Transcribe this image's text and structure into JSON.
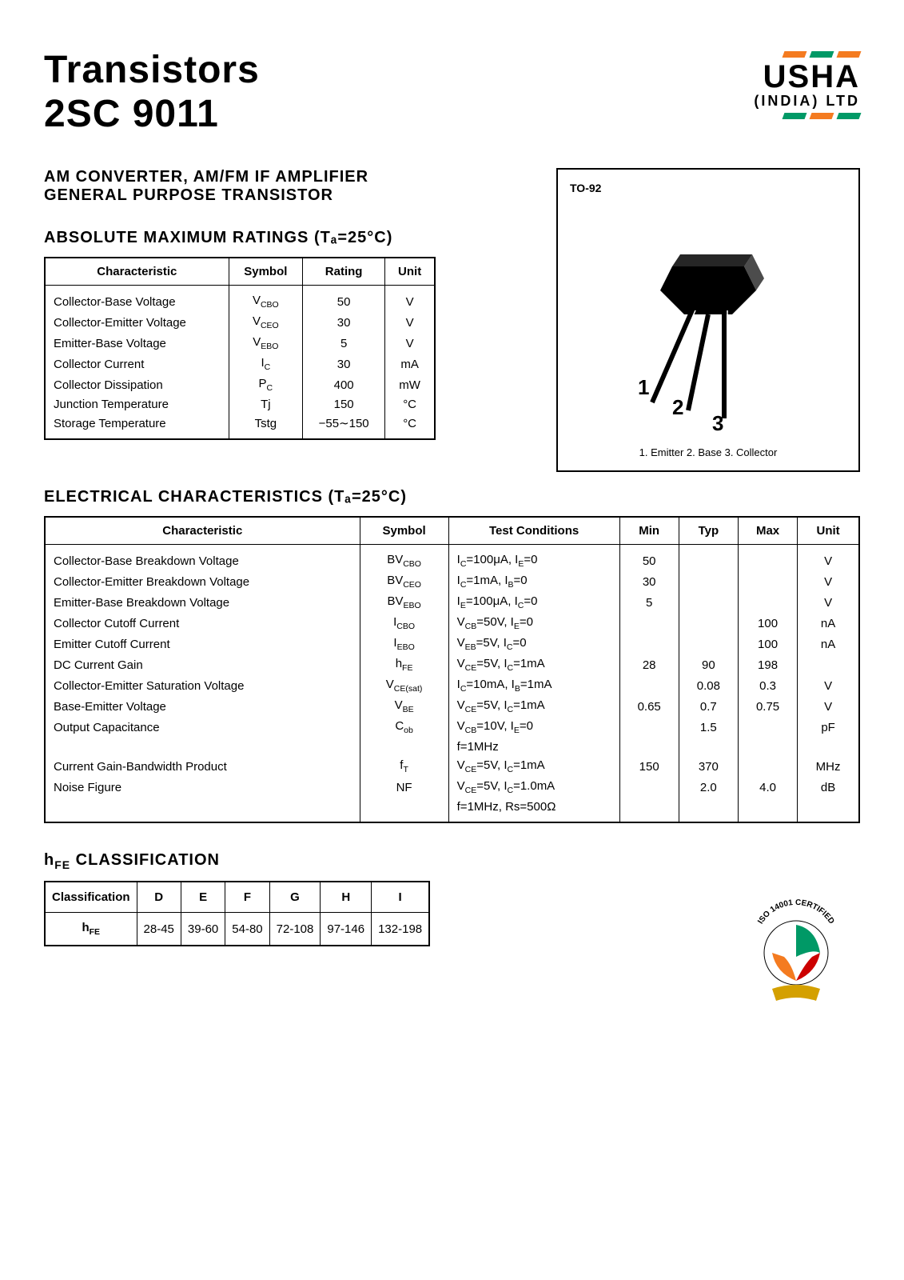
{
  "header": {
    "title_line1": "Transistors",
    "title_line2": "2SC 9011",
    "logo_text": "USHA",
    "logo_sub": "(INDIA) LTD",
    "flag_colors": [
      "#f47b20",
      "#009966"
    ]
  },
  "subtitle": {
    "line1": "AM CONVERTER, AM/FM IF AMPLIFIER",
    "line2": "GENERAL PURPOSE TRANSISTOR"
  },
  "package": {
    "label": "TO-92",
    "pin1": "1",
    "pin2": "2",
    "pin3": "3",
    "legend": "1. Emitter 2. Base 3. Collector"
  },
  "amr": {
    "title": "ABSOLUTE MAXIMUM RATINGS (Tₐ=25°C)",
    "headers": [
      "Characteristic",
      "Symbol",
      "Rating",
      "Unit"
    ],
    "rows": [
      {
        "c": "Collector-Base Voltage",
        "s": "V",
        "sub": "CBO",
        "r": "50",
        "u": "V"
      },
      {
        "c": "Collector-Emitter Voltage",
        "s": "V",
        "sub": "CEO",
        "r": "30",
        "u": "V"
      },
      {
        "c": "Emitter-Base Voltage",
        "s": "V",
        "sub": "EBO",
        "r": "5",
        "u": "V"
      },
      {
        "c": "Collector Current",
        "s": "I",
        "sub": "C",
        "r": "30",
        "u": "mA"
      },
      {
        "c": "Collector Dissipation",
        "s": "P",
        "sub": "C",
        "r": "400",
        "u": "mW"
      },
      {
        "c": "Junction Temperature",
        "s": "Tj",
        "sub": "",
        "r": "150",
        "u": "°C"
      },
      {
        "c": "Storage Temperature",
        "s": "Tstg",
        "sub": "",
        "r": "−55∼150",
        "u": "°C"
      }
    ]
  },
  "elec": {
    "title": "ELECTRICAL CHARACTERISTICS (Tₐ=25°C)",
    "headers": [
      "Characteristic",
      "Symbol",
      "Test Conditions",
      "Min",
      "Typ",
      "Max",
      "Unit"
    ],
    "rows": [
      {
        "c": "Collector-Base Breakdown Voltage",
        "s": "BV",
        "sub": "CBO",
        "tc": "I_C=100μA, I_E=0",
        "min": "50",
        "typ": "",
        "max": "",
        "u": "V"
      },
      {
        "c": "Collector-Emitter Breakdown Voltage",
        "s": "BV",
        "sub": "CEO",
        "tc": "I_C=1mA, I_B=0",
        "min": "30",
        "typ": "",
        "max": "",
        "u": "V"
      },
      {
        "c": "Emitter-Base Breakdown Voltage",
        "s": "BV",
        "sub": "EBO",
        "tc": "I_E=100μA, I_C=0",
        "min": "5",
        "typ": "",
        "max": "",
        "u": "V"
      },
      {
        "c": "Collector Cutoff Current",
        "s": "I",
        "sub": "CBO",
        "tc": "V_CB=50V, I_E=0",
        "min": "",
        "typ": "",
        "max": "100",
        "u": "nA"
      },
      {
        "c": "Emitter Cutoff Current",
        "s": "I",
        "sub": "EBO",
        "tc": "V_EB=5V, I_C=0",
        "min": "",
        "typ": "",
        "max": "100",
        "u": "nA"
      },
      {
        "c": "DC Current Gain",
        "s": "h",
        "sub": "FE",
        "tc": "V_CE=5V, I_C=1mA",
        "min": "28",
        "typ": "90",
        "max": "198",
        "u": ""
      },
      {
        "c": "Collector-Emitter Saturation Voltage",
        "s": "V",
        "sub": "CE(sat)",
        "tc": "I_C=10mA, I_B=1mA",
        "min": "",
        "typ": "0.08",
        "max": "0.3",
        "u": "V"
      },
      {
        "c": "Base-Emitter Voltage",
        "s": "V",
        "sub": "BE",
        "tc": "V_CE=5V, I_C=1mA",
        "min": "0.65",
        "typ": "0.7",
        "max": "0.75",
        "u": "V"
      },
      {
        "c": "Output Capacitance",
        "s": "C",
        "sub": "ob",
        "tc": "V_CB=10V, I_E=0",
        "min": "",
        "typ": "1.5",
        "max": "",
        "u": "pF"
      },
      {
        "c": "",
        "s": "",
        "sub": "",
        "tc": "f=1MHz",
        "min": "",
        "typ": "",
        "max": "",
        "u": ""
      },
      {
        "c": "Current Gain-Bandwidth Product",
        "s": "f",
        "sub": "T",
        "tc": "V_CE=5V, I_C=1mA",
        "min": "150",
        "typ": "370",
        "max": "",
        "u": "MHz"
      },
      {
        "c": "Noise Figure",
        "s": "NF",
        "sub": "",
        "tc": "V_CE=5V, I_C=1.0mA",
        "min": "",
        "typ": "2.0",
        "max": "4.0",
        "u": "dB"
      },
      {
        "c": "",
        "s": "",
        "sub": "",
        "tc": "f=1MHz, Rs=500Ω",
        "min": "",
        "typ": "",
        "max": "",
        "u": ""
      }
    ]
  },
  "hfe": {
    "title": "hFE CLASSIFICATION",
    "headers": [
      "Classification",
      "D",
      "E",
      "F",
      "G",
      "H",
      "I"
    ],
    "row_label": "hFE",
    "values": [
      "28-45",
      "39-60",
      "54-80",
      "72-108",
      "97-146",
      "132-198"
    ]
  },
  "iso": {
    "outer_text": "ISO 14001 CERTIFIED",
    "colors": {
      "top": "#009966",
      "left": "#f47b20",
      "right": "#cc0000",
      "ribbon": "#d4a000"
    }
  }
}
